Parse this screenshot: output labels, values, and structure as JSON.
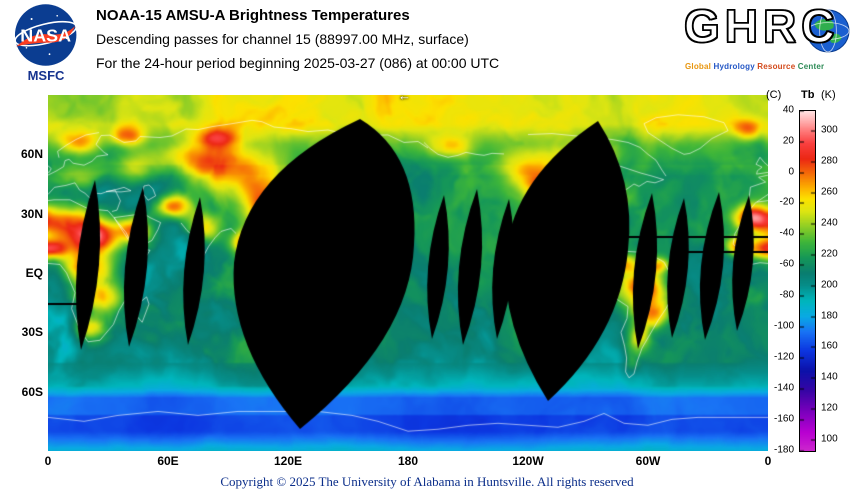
{
  "header": {
    "nasa_logo_text": "NASA",
    "nasa_center_label": "MSFC",
    "title": "NOAA-15 AMSU-A Brightness Temperatures",
    "subtitle_line1": "Descending passes for channel 15 (88997.00 MHz, surface)",
    "subtitle_line2": "For the 24-hour period beginning 2025-03-27 (086) at 00:00 UTC",
    "ghrc": {
      "logo_text": "GHRC",
      "tagline_words": [
        {
          "text": "Global",
          "color": "#e8960f"
        },
        {
          "text": "Hydrology",
          "color": "#2457c5"
        },
        {
          "text": "Resource",
          "color": "#d2491a"
        },
        {
          "text": "Center",
          "color": "#2e8b57"
        }
      ]
    }
  },
  "map": {
    "direction_arrow": "←",
    "y_axis_labels": [
      {
        "label": "60N",
        "lat": 60
      },
      {
        "label": "30N",
        "lat": 30
      },
      {
        "label": "EQ",
        "lat": 0
      },
      {
        "label": "30S",
        "lat": -30
      },
      {
        "label": "60S",
        "lat": -60
      }
    ],
    "x_axis_labels": [
      {
        "label": "0",
        "lon": 0
      },
      {
        "label": "60E",
        "lon": 60
      },
      {
        "label": "120E",
        "lon": 120
      },
      {
        "label": "180",
        "lon": 180
      },
      {
        "label": "120W",
        "lon": 240
      },
      {
        "label": "60W",
        "lon": 300
      },
      {
        "label": "0",
        "lon": 360
      }
    ],
    "colorbar": {
      "unit_left": "(C)",
      "unit_title": "Tb",
      "unit_right": "(K)",
      "c_ticks": [
        40,
        20,
        0,
        -20,
        -40,
        -60,
        -80,
        -100,
        -120,
        -140,
        -160,
        -180
      ],
      "k_ticks": [
        300,
        280,
        260,
        240,
        220,
        200,
        180,
        160,
        140,
        120,
        100
      ],
      "k_range": [
        93,
        313
      ]
    }
  },
  "chart_data": {
    "type": "heatmap",
    "title": "NOAA-15 AMSU-A Brightness Temperatures",
    "subtitle": "Descending passes for channel 15 (88997.00 MHz, surface), 24-hour period beginning 2025-03-27 (086) at 00:00 UTC",
    "projection": "equirectangular world map, longitude 0E eastward to 360E, latitude 90N to 90S",
    "value_label": "Tb",
    "value_units": [
      "C",
      "K"
    ],
    "colorbar_k_ticks": [
      300,
      280,
      260,
      240,
      220,
      200,
      180,
      160,
      140,
      120,
      100
    ],
    "colorbar_c_ticks": [
      40,
      20,
      0,
      -20,
      -40,
      -60,
      -80,
      -100,
      -120,
      -140,
      -160,
      -180
    ],
    "x_tick_labels": [
      "0",
      "60E",
      "120E",
      "180",
      "120W",
      "60W",
      "0"
    ],
    "y_tick_labels": [
      "60N",
      "30N",
      "EQ",
      "30S",
      "60S"
    ],
    "missing_data_regions": "black lens-shaped satellite swath gaps",
    "legend_position": "right"
  },
  "colors": {
    "footer_text": "#0b2e8a",
    "missing_data": "#000000",
    "page_background": "#ffffff"
  },
  "footer": {
    "copyright": "Copyright © 2025 The University of Alabama in Huntsville.  All rights reserved"
  }
}
